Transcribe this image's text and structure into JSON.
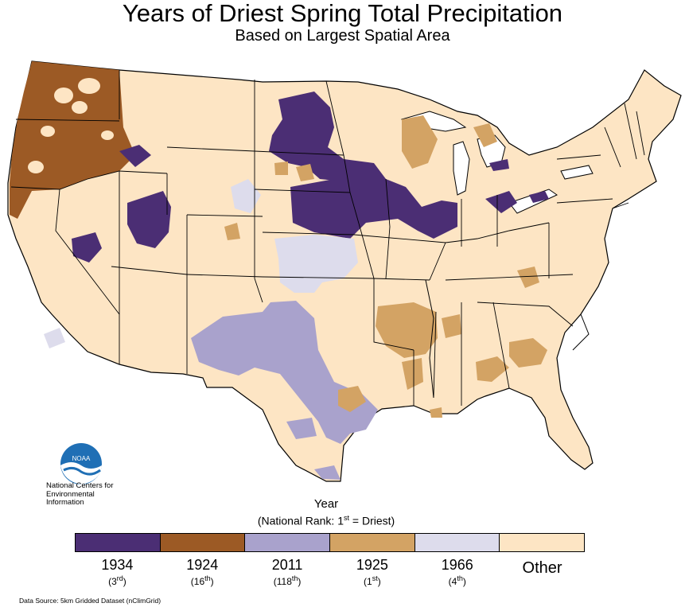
{
  "title": "Years of Driest Spring Total Precipitation",
  "subtitle": "Based on Largest Spatial Area",
  "logo": {
    "badge": "NOAA",
    "org": "National Centers for Environmental Information"
  },
  "legend": {
    "title": "Year",
    "subtitle_prefix": "(National Rank: 1",
    "subtitle_sup": "st",
    "subtitle_suffix": " = Driest)",
    "items": [
      {
        "year": "1934",
        "rank": "3",
        "suffix": "rd",
        "color": "#4b2e74"
      },
      {
        "year": "1924",
        "rank": "16",
        "suffix": "th",
        "color": "#9c5a25"
      },
      {
        "year": "2011",
        "rank": "118",
        "suffix": "th",
        "color": "#a9a2cc"
      },
      {
        "year": "1925",
        "rank": "1",
        "suffix": "st",
        "color": "#d3a364"
      },
      {
        "year": "1966",
        "rank": "4",
        "suffix": "th",
        "color": "#dddcec"
      },
      {
        "year": "Other",
        "color": "#fde5c4"
      }
    ]
  },
  "source": "Data Source: 5km Gridded Dataset (nClimGrid)"
}
